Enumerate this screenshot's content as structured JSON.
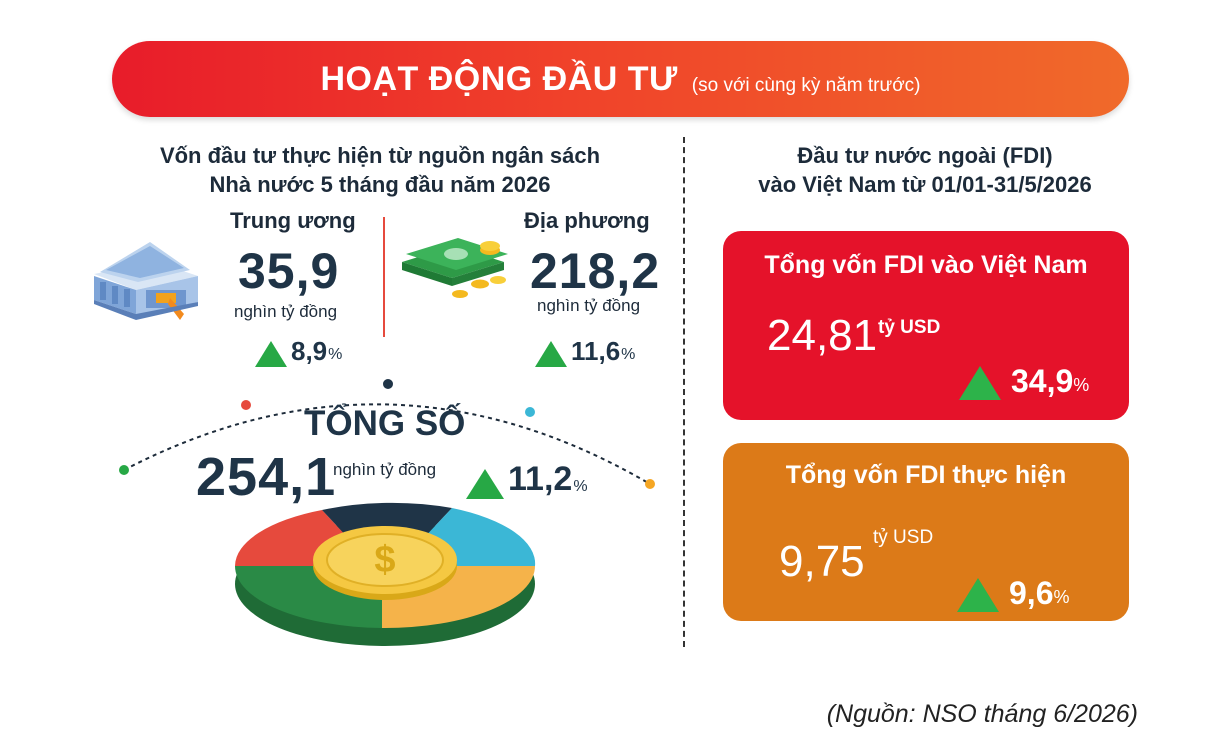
{
  "banner": {
    "title": "HOẠT ĐỘNG ĐẦU TƯ",
    "subtitle": "(so với cùng kỳ năm trước)"
  },
  "left": {
    "heading_line1": "Vốn đầu tư thực hiện từ nguồn ngân sách",
    "heading_line2": "Nhà nước 5 tháng đầu năm 2026",
    "central": {
      "label": "Trung ương",
      "value": "35,9",
      "unit": "nghìn tỷ đồng",
      "change": "8,9",
      "percent_sign": "%",
      "icon": "bank-icon"
    },
    "local": {
      "label": "Địa phương",
      "value": "218,2",
      "unit": "nghìn tỷ đồng",
      "change": "11,6",
      "percent_sign": "%",
      "icon": "money-stack-icon"
    },
    "total": {
      "label": "TỔNG SỐ",
      "value": "254,1",
      "unit": "nghìn tỷ đồng",
      "change": "11,2",
      "percent_sign": "%",
      "icon": "coin-donut-icon"
    }
  },
  "right": {
    "heading_line1": "Đầu tư nước ngoài (FDI)",
    "heading_line2": "vào Việt Nam từ 01/01-31/5/2026",
    "fdi_registered": {
      "title": "Tổng vốn FDI vào Việt Nam",
      "value": "24,81",
      "unit": "tỷ USD",
      "change": "34,9",
      "percent_sign": "%",
      "color": "#e5122a"
    },
    "fdi_disbursed": {
      "title": "Tổng vốn FDI thực hiện",
      "value": "9,75",
      "unit": "tỷ USD",
      "change": "9,6",
      "percent_sign": "%",
      "color": "#dc7a18"
    }
  },
  "source": "(Nguồn: NSO tháng 6/2026)",
  "colors": {
    "up_arrow": "#27a845",
    "banner": "#e81c2a"
  }
}
